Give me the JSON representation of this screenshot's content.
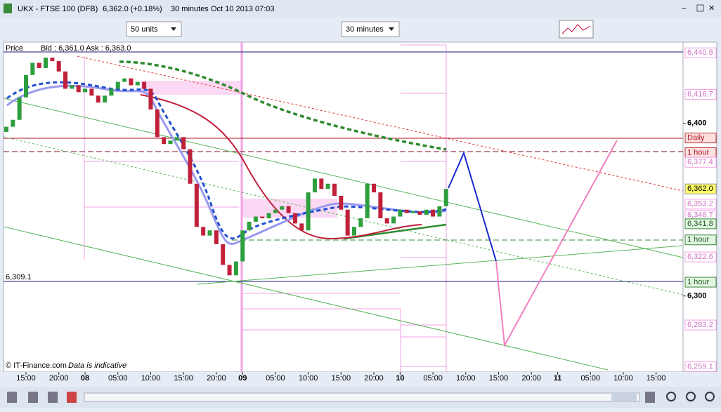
{
  "window": {
    "title": "UKX - FTSE 100 (DFB)",
    "price_change": "6,362.0 (+0.18%)",
    "interval": "30 minutes",
    "timestamp": "Oct 10 2013 07:03"
  },
  "toolbar": {
    "units": "50 units",
    "interval": "30 minutes"
  },
  "legend": {
    "price": "Price",
    "quote": "Bid : 6,361.0  Ask : 6,363.0"
  },
  "left_label": "6,309.1",
  "footer": {
    "copyright": "© IT-Finance.com",
    "note": "Data is indicative"
  },
  "chart": {
    "type": "candlestick",
    "ylim": [
      6256,
      6447
    ],
    "first_open": 6395,
    "x": [
      12,
      13,
      14,
      15,
      16,
      17,
      18,
      19,
      20,
      21,
      22,
      23,
      24,
      25,
      26,
      27,
      28,
      29,
      30,
      31,
      32,
      33,
      34,
      35,
      36,
      37,
      38,
      39,
      40,
      41,
      42,
      43,
      44,
      45,
      46,
      47,
      48,
      49,
      50,
      51,
      52,
      53,
      54,
      55,
      56,
      57,
      58,
      59,
      60,
      61,
      62,
      63,
      64,
      65,
      66,
      67,
      68,
      69,
      70,
      71,
      72,
      73,
      74,
      75,
      76,
      77,
      78,
      79
    ],
    "closes": [
      6398,
      6402,
      6415,
      6428,
      6435,
      6432,
      6438,
      6436,
      6430,
      6420,
      6422,
      6418,
      6420,
      6416,
      6412,
      6416,
      6420,
      6424,
      6426,
      6422,
      6424,
      6420,
      6408,
      6392,
      6388,
      6390,
      6392,
      6385,
      6365,
      6340,
      6335,
      6338,
      6330,
      6318,
      6312,
      6320,
      6338,
      6343,
      6346,
      6345,
      6348,
      6350,
      6352,
      6348,
      6342,
      6338,
      6360,
      6368,
      6362,
      6365,
      6358,
      6350,
      6335,
      6340,
      6345,
      6365,
      6360,
      6345,
      6342,
      6346,
      6350,
      6348,
      6349,
      6347,
      6350,
      6346,
      6352,
      6362
    ],
    "price_labels": [
      {
        "value": 6440.8,
        "label": "6,440.8",
        "kind": "fib"
      },
      {
        "value": 6416.7,
        "label": "6,416.7",
        "kind": "fib"
      },
      {
        "value": 6400,
        "label": "6,400",
        "kind": "axis"
      },
      {
        "value": 6391.5,
        "label": "Daily",
        "kind": "red"
      },
      {
        "value": 6383,
        "label": "1 hour",
        "kind": "red"
      },
      {
        "value": 6377.4,
        "label": "6,377.4",
        "kind": "fib"
      },
      {
        "value": 6362,
        "label": "6,362.0",
        "kind": "last"
      },
      {
        "value": 6353.2,
        "label": "6,353.2",
        "kind": "fib"
      },
      {
        "value": 6346.7,
        "label": "6,346.7",
        "kind": "fib"
      },
      {
        "value": 6341.8,
        "label": "6,341.8",
        "kind": "green"
      },
      {
        "value": 6332.5,
        "label": "1 hour",
        "kind": "green"
      },
      {
        "value": 6322.6,
        "label": "6,322.6",
        "kind": "fib"
      },
      {
        "value": 6308,
        "label": "1 hour",
        "kind": "green"
      },
      {
        "value": 6300,
        "label": "6,300",
        "kind": "axis"
      },
      {
        "value": 6283.2,
        "label": "6,283.2",
        "kind": "fib"
      },
      {
        "value": 6259.1,
        "label": "6,259.1",
        "kind": "fib"
      }
    ],
    "time_ticks": [
      {
        "value": 15,
        "label": "15:00"
      },
      {
        "value": 20,
        "label": "20:00"
      },
      {
        "value": 24,
        "label": "08"
      },
      {
        "value": 29,
        "label": "05:00"
      },
      {
        "value": 34,
        "label": "10:00"
      },
      {
        "value": 39,
        "label": "15:00"
      },
      {
        "value": 44,
        "label": "20:00"
      },
      {
        "value": 48,
        "label": "09"
      },
      {
        "value": 53,
        "label": "05:00"
      },
      {
        "value": 58,
        "label": "10:00"
      },
      {
        "value": 63,
        "label": "15:00"
      },
      {
        "value": 68,
        "label": "20:00"
      },
      {
        "value": 72,
        "label": "10"
      },
      {
        "value": 77,
        "label": "05:00"
      },
      {
        "value": 82,
        "label": "10:00"
      },
      {
        "value": 87,
        "label": "15:00"
      },
      {
        "value": 92,
        "label": "20:00"
      },
      {
        "value": 96,
        "label": "11"
      },
      {
        "value": 101,
        "label": "05:00"
      },
      {
        "value": 106,
        "label": "10:00"
      },
      {
        "value": 111,
        "label": "15:00"
      }
    ],
    "up_color": "#2e9e3e",
    "down_color": "#c0203a"
  }
}
